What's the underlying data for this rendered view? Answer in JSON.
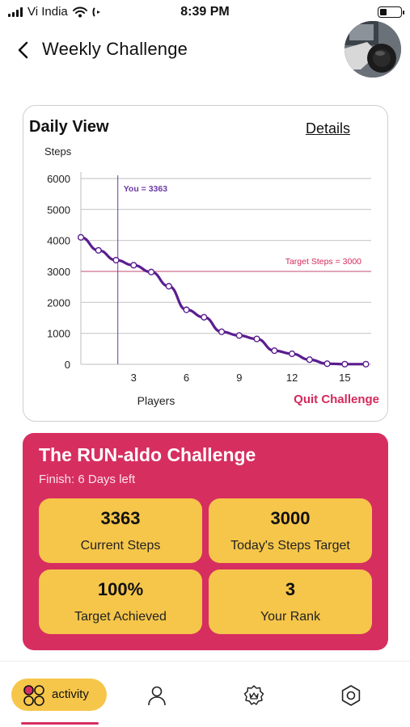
{
  "status_bar": {
    "carrier": "Vi India",
    "time": "8:39 PM",
    "battery_level": 0.35
  },
  "header": {
    "title": "Weekly Challenge",
    "back_icon": "chevron-left-icon",
    "avatar_icon": "profile-photo"
  },
  "chart_card": {
    "title": "Daily View",
    "details_link": "Details",
    "quit_label": "Quit Challenge"
  },
  "chart_data": {
    "type": "line",
    "ylabel": "Steps",
    "xlabel": "Players",
    "ylim": [
      0,
      6000
    ],
    "xlim": [
      0,
      16.5
    ],
    "yticks": [
      0,
      1000,
      2000,
      3000,
      4000,
      5000,
      6000
    ],
    "xticks": [
      3,
      6,
      9,
      12,
      15
    ],
    "grid": true,
    "series": [
      {
        "values": [
          4100,
          3680,
          3363,
          3200,
          2980,
          2520,
          1760,
          1520,
          1050,
          930,
          820,
          440,
          340,
          150,
          20,
          5,
          5
        ],
        "x": [
          0,
          1,
          2,
          3,
          4,
          5,
          6,
          7,
          8,
          9,
          10,
          11,
          12,
          13,
          14,
          15,
          16.2
        ],
        "color": "#5a1d8f"
      }
    ],
    "annotations": [
      {
        "kind": "vline",
        "x": 2.1,
        "text": "You = 3363",
        "color": "#6b3aa6"
      },
      {
        "kind": "hline",
        "y": 3000,
        "text": "Target Steps = 3000",
        "color": "#d4295c"
      }
    ]
  },
  "challenge": {
    "title": "The RUN-aldo Challenge",
    "subtitle": "Finish: 6 Days left",
    "stats": [
      {
        "value": "3363",
        "label": "Current Steps"
      },
      {
        "value": "3000",
        "label": "Today's Steps Target"
      },
      {
        "value": "100%",
        "label": "Target Achieved"
      },
      {
        "value": "3",
        "label": "Your Rank"
      }
    ]
  },
  "bottom_nav": {
    "items": [
      {
        "label": "activity",
        "icon": "activity-icon",
        "active": true
      },
      {
        "label": "",
        "icon": "person-icon"
      },
      {
        "label": "",
        "icon": "badge-icon"
      },
      {
        "label": "",
        "icon": "settings-icon"
      }
    ]
  },
  "colors": {
    "accent_pink": "#d72e60",
    "tile_yellow": "#f6c64a",
    "line_purple": "#5a1d8f"
  }
}
